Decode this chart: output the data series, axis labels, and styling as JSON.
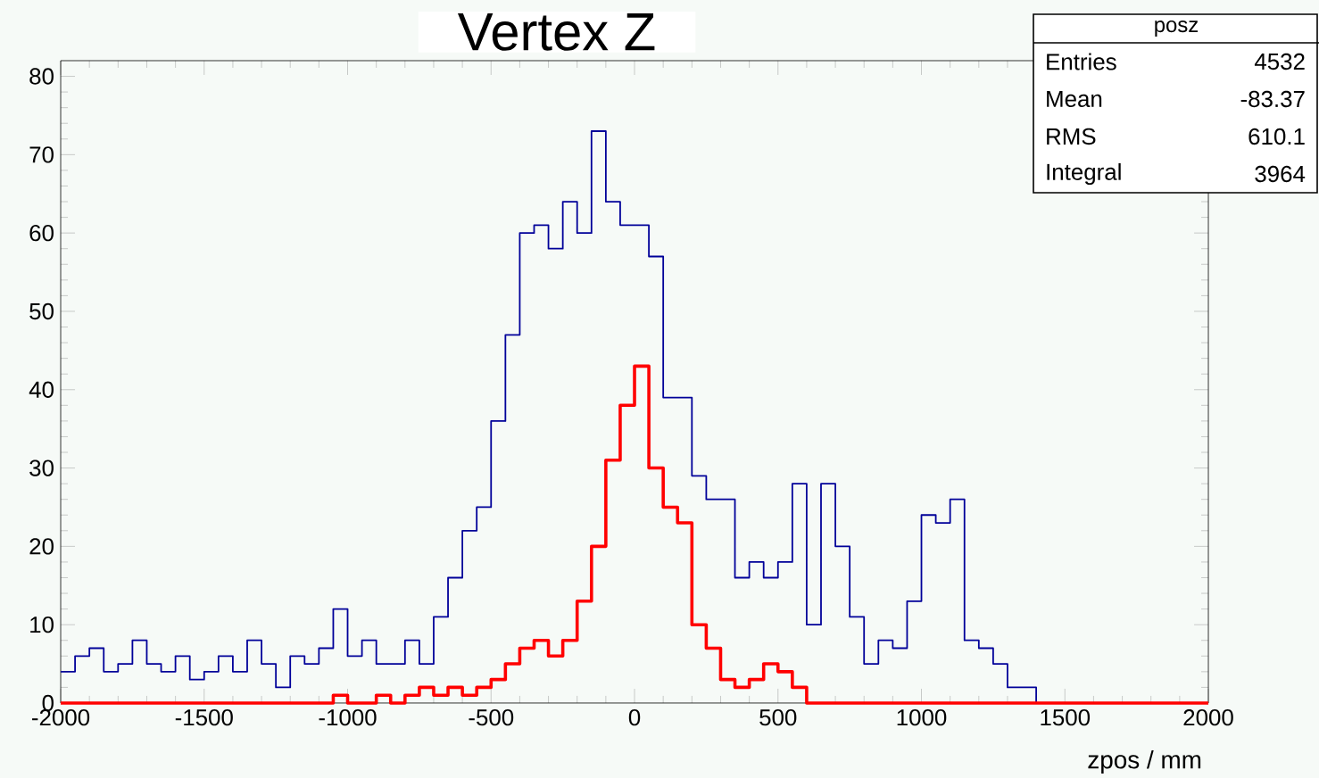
{
  "chart_data": {
    "type": "histogram",
    "title": "Vertex Z",
    "xlabel": "zpos / mm",
    "bins": [
      -2000,
      -1950,
      -1900,
      -1850,
      -1800,
      -1750,
      -1700,
      -1650,
      -1600,
      -1550,
      -1500,
      -1450,
      -1400,
      -1350,
      -1300,
      -1250,
      -1200,
      -1150,
      -1100,
      -1050,
      -1000,
      -950,
      -900,
      -850,
      -800,
      -750,
      -700,
      -650,
      -600,
      -550,
      -500,
      -450,
      -400,
      -350,
      -300,
      -250,
      -200,
      -150,
      -100,
      -50,
      0,
      50,
      100,
      150,
      200,
      250,
      300,
      350,
      400,
      450,
      500,
      550,
      600,
      650,
      700,
      750,
      800,
      850,
      900,
      950,
      1000,
      1050,
      1100,
      1150,
      1200,
      1250,
      1300,
      1350,
      1400,
      1450,
      1500,
      1550,
      1600,
      1650,
      1700,
      1750,
      1800,
      1850,
      1900,
      1950,
      2000
    ],
    "series": [
      {
        "color": "#000099",
        "values": [
          4,
          6,
          7,
          4,
          5,
          8,
          5,
          4,
          6,
          3,
          4,
          6,
          4,
          8,
          5,
          2,
          6,
          5,
          7,
          12,
          6,
          8,
          5,
          5,
          8,
          5,
          11,
          16,
          22,
          25,
          36,
          47,
          60,
          61,
          58,
          64,
          60,
          73,
          64,
          61,
          61,
          57,
          39,
          39,
          29,
          26,
          26,
          16,
          18,
          16,
          18,
          28,
          10,
          28,
          20,
          11,
          5,
          8,
          7,
          13,
          24,
          23,
          26,
          8,
          7,
          5,
          2,
          2,
          0,
          0,
          0,
          0,
          0,
          0,
          0,
          0,
          0,
          0,
          0,
          0
        ]
      },
      {
        "color": "#ff0000",
        "values": [
          0,
          0,
          0,
          0,
          0,
          0,
          0,
          0,
          0,
          0,
          0,
          0,
          0,
          0,
          0,
          0,
          0,
          0,
          0,
          1,
          0,
          0,
          1,
          0,
          1,
          2,
          1,
          2,
          1,
          2,
          3,
          5,
          7,
          8,
          6,
          8,
          13,
          20,
          31,
          38,
          43,
          30,
          25,
          23,
          10,
          7,
          3,
          2,
          3,
          5,
          4,
          2,
          0,
          0,
          0,
          0,
          0,
          0,
          0,
          0,
          0,
          0,
          0,
          0,
          0,
          0,
          0,
          0,
          0,
          0,
          0,
          0,
          0,
          0,
          0,
          0,
          0,
          0,
          0,
          0
        ]
      }
    ],
    "xlim": [
      -2000,
      2000
    ],
    "ylim": [
      0,
      82
    ],
    "xticks": [
      -2000,
      -1500,
      -1000,
      -500,
      0,
      500,
      1000,
      1500,
      2000
    ],
    "yticks": [
      0,
      10,
      20,
      30,
      40,
      50,
      60,
      70,
      80
    ],
    "grid": false,
    "annotations": [
      "posz",
      "Entries",
      "4532",
      "Mean",
      "-83.37",
      "RMS",
      "610.1",
      "Integral",
      "3964"
    ]
  }
}
